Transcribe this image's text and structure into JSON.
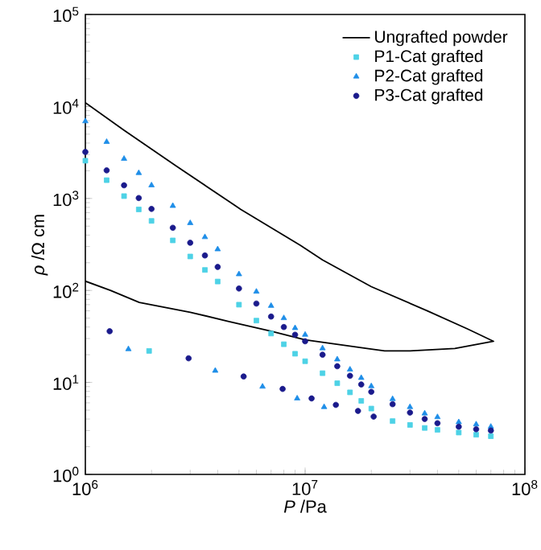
{
  "chart_data": {
    "type": "scatter",
    "xlabel": "*P* /Pa",
    "ylabel": "*ρ* /Ω cm",
    "log": "xy",
    "legend": "top right",
    "xlim": [
      1000000,
      100000000
    ],
    "ylim": [
      1,
      100000
    ],
    "xticks": [
      {
        "value": 1000000,
        "label": "10$^{6}$"
      },
      {
        "value": 10000000,
        "label": "10$^{7}$"
      },
      {
        "value": 100000000,
        "label": "10$^{8}$"
      }
    ],
    "yticks": [
      {
        "value": 1,
        "label": "10$^{0}$"
      },
      {
        "value": 10,
        "label": "10$^{1}$"
      },
      {
        "value": 100,
        "label": "10$^{2}$"
      },
      {
        "value": 1000,
        "label": "10$^{3}$"
      },
      {
        "value": 10000,
        "label": "10$^{4}$"
      },
      {
        "value": 100000,
        "label": "10$^{5}$"
      }
    ],
    "series": [
      {
        "name": "Ungrafted powder",
        "type": "line",
        "color": "#000000",
        "marker": "none",
        "x": [
          1000000,
          1500000,
          2600000,
          5100000,
          9500000,
          12000000,
          20000000,
          36000000,
          55000000,
          72000000,
          48000000,
          30000000,
          23000000,
          20000000,
          10000000,
          7000000,
          4500000,
          3000000,
          1760000,
          1300000,
          1000000
        ],
        "values": [
          11000,
          5500,
          2240,
          760,
          310,
          215,
          110,
          60,
          38,
          28,
          23.4,
          22,
          22,
          23,
          29,
          36,
          46,
          58,
          74,
          100,
          126
        ]
      },
      {
        "name": "P1-Cat grafted",
        "color": "#4dd2e6",
        "marker": "square",
        "x": [
          1000000,
          1250000,
          1500000,
          1750000,
          2000000,
          2500000,
          3000000,
          3500000,
          4000000,
          5000000,
          6000000,
          7000000,
          8000000,
          9000000,
          10000000,
          12000000,
          14000000,
          16000000,
          18000000,
          20000000,
          25000000,
          30000000,
          35000000,
          40000000,
          50000000,
          60000000,
          70000000,
          1950000
        ],
        "values": [
          2570,
          1580,
          1060,
          760,
          570,
          350,
          234,
          167,
          125,
          70,
          47,
          34,
          26,
          20.5,
          17,
          12.6,
          9.8,
          7.8,
          6.3,
          5.2,
          3.8,
          3.45,
          3.2,
          3.05,
          2.85,
          2.7,
          2.6,
          22
        ]
      },
      {
        "name": "P2-Cat grafted",
        "color": "#1e8ee8",
        "marker": "triangle",
        "x": [
          1000000,
          1250000,
          1500000,
          1750000,
          2000000,
          2500000,
          3000000,
          3500000,
          4000000,
          5000000,
          6000000,
          7000000,
          8000000,
          9000000,
          10000000,
          12000000,
          14000000,
          16000000,
          18000000,
          20000000,
          25000000,
          30000000,
          35000000,
          40000000,
          50000000,
          60000000,
          70000000,
          1570000,
          3900000,
          6400000,
          9200000,
          12200000
        ],
        "values": [
          6900,
          4120,
          2700,
          1890,
          1390,
          830,
          540,
          380,
          280,
          150,
          97,
          68,
          50,
          39,
          33,
          23.5,
          17.8,
          13.8,
          11.2,
          9.1,
          6.6,
          5.4,
          4.6,
          4.2,
          3.7,
          3.5,
          3.3,
          23,
          13.4,
          9,
          6.7,
          5.4
        ]
      },
      {
        "name": "P3-Cat  grafted",
        "color": "#1a1a8c",
        "marker": "circle",
        "x": [
          1000000,
          1250000,
          1500000,
          1750000,
          2000000,
          2500000,
          3000000,
          3500000,
          4000000,
          5000000,
          6000000,
          7000000,
          8000000,
          9000000,
          10000000,
          12000000,
          14000000,
          16000000,
          18000000,
          20000000,
          25000000,
          30000000,
          35000000,
          40000000,
          50000000,
          60000000,
          70000000,
          1290000,
          2950000,
          5250000,
          7900000,
          10700000,
          13800000,
          17400000,
          20500000
        ],
        "values": [
          3200,
          2020,
          1390,
          1010,
          770,
          480,
          330,
          240,
          180,
          105,
          72,
          52,
          40,
          33,
          28,
          20,
          15,
          11.8,
          9.5,
          7.9,
          5.8,
          4.7,
          4,
          3.6,
          3.3,
          3.1,
          3,
          36,
          18.3,
          11.6,
          8.5,
          6.7,
          5.7,
          4.9,
          4.25
        ]
      }
    ]
  }
}
